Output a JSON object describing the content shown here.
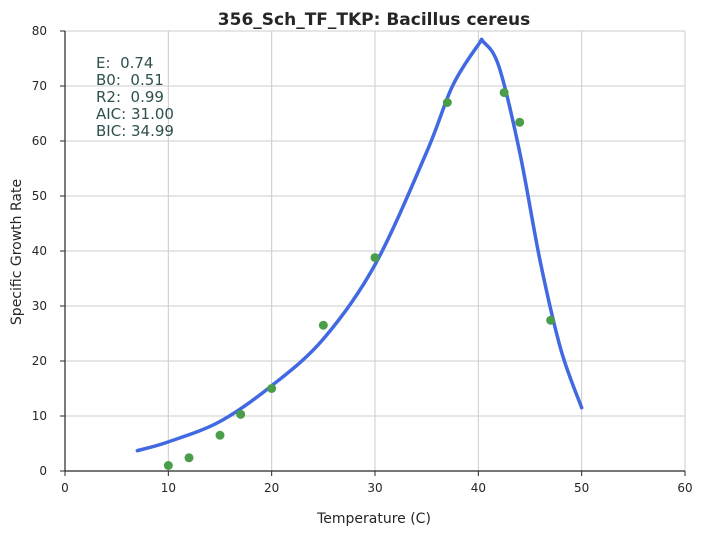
{
  "chart_data": {
    "type": "scatter",
    "title": "356_Sch_TF_TKP: Bacillus cereus",
    "xlabel": "Temperature (C)",
    "ylabel": "Specific Growth Rate",
    "xlim": [
      0,
      60
    ],
    "ylim": [
      0,
      80
    ],
    "xticks": [
      0,
      10,
      20,
      30,
      40,
      50,
      60
    ],
    "yticks": [
      0,
      10,
      20,
      30,
      40,
      50,
      60,
      70,
      80
    ],
    "grid": true,
    "colors": {
      "points": "#4a9e4a",
      "fit": "#4169e1",
      "annotation": "#2f4f4f",
      "grid": "#cccccc"
    },
    "points": {
      "x": [
        10,
        12,
        15,
        17,
        20,
        25,
        30,
        37,
        42.5,
        44,
        47
      ],
      "y": [
        1.0,
        2.4,
        6.5,
        10.3,
        15.0,
        26.5,
        38.8,
        67.0,
        68.8,
        63.4,
        27.4
      ]
    },
    "fit": {
      "x": [
        7,
        10,
        15,
        20,
        25,
        30,
        35,
        37.5,
        40,
        40.5,
        42,
        44,
        46,
        48,
        50
      ],
      "y": [
        3.7,
        5.3,
        9.0,
        15.5,
        24.0,
        37.5,
        58.0,
        70.0,
        77.5,
        78.0,
        73.5,
        58.0,
        38.0,
        22.0,
        11.5
      ]
    },
    "annotations": [
      "E:  0.74",
      "B0:  0.51",
      "R2:  0.99",
      "AIC: 31.00",
      "BIC: 34.99"
    ]
  }
}
